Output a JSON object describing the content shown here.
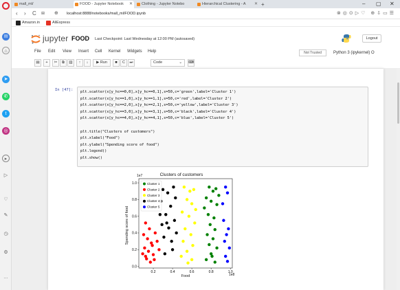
{
  "browser": {
    "tabs": [
      {
        "label": "mall_ml/",
        "color": "#f08a24"
      },
      {
        "label": "FOOD - Jupyter Notebook",
        "color": "#f08a24"
      },
      {
        "label": "Clothing - Jupyter Notebo",
        "color": "#f08a24"
      },
      {
        "label": "Hierarchical Clustering - A",
        "color": "#f08a24"
      }
    ],
    "new_tab": "+",
    "window_controls": [
      "–",
      "▢",
      "✕"
    ],
    "url": "localhost:8888/notebooks/mall_ml/FOOD.ipynb",
    "bookmarks": [
      {
        "label": "Amazon.in",
        "color": "#222222"
      },
      {
        "label": "AliExpress",
        "color": "#e43225"
      }
    ]
  },
  "jupyter": {
    "brand": "jupyter",
    "notebook_name": "FOOD",
    "checkpoint": "Last Checkpoint: Last Wednesday at 12:00 PM  (autosaved)",
    "logout": "Logout",
    "menu": [
      "File",
      "Edit",
      "View",
      "Insert",
      "Cell",
      "Kernel",
      "Widgets",
      "Help"
    ],
    "trusted": "Not Trusted",
    "kernel": "Python 3 (ipykernel)  O",
    "toolbar": {
      "run": "▶ Run",
      "cell_type": "Code"
    }
  },
  "cell": {
    "prompt": "In [47]:",
    "code": [
      "plt.scatter(x[y_hc==0,0],x[y_hc==0,1],s=50,c='green',label='Cluster 1')",
      "plt.scatter(x[y_hc==1,0],x[y_hc==1,1],s=50,c='red',label='Cluster 2')",
      "plt.scatter(x[y_hc==2,0],x[y_hc==2,1],s=50,c='yellow',label='Cluster 3')",
      "plt.scatter(x[y_hc==3,0],x[y_hc==3,1],s=50,c='black',label='Cluster 4')",
      "plt.scatter(x[y_hc==4,0],x[y_hc==4,1],s=50,c='blue',label='Cluster 5')",
      "",
      "plt.title(\"Clusters of customers\")",
      "plt.xlabel(\"Food\")",
      "plt.ylabel(\"Spending score of food\")",
      "plt.legend()",
      "plt.show()"
    ]
  },
  "chart_data": {
    "type": "scatter",
    "title": "Clusters of customers",
    "xlabel": "Food",
    "ylabel": "Spending score of food",
    "x_offset_label": "1e8",
    "y_offset_label": "1e7",
    "xlim": [
      0.05,
      1.02
    ],
    "ylim": [
      -0.02,
      1.05
    ],
    "xticks": [
      "0.2",
      "0.4",
      "0.6",
      "0.8",
      "1.0"
    ],
    "yticks": [
      "0.0",
      "0.2",
      "0.4",
      "0.6",
      "0.8",
      "1.0"
    ],
    "legend_position": "upper-left",
    "series": [
      {
        "name": "Cluster 1",
        "color": "green",
        "points": [
          [
            0.78,
            0.95
          ],
          [
            0.82,
            0.9
          ],
          [
            0.85,
            0.93
          ],
          [
            0.75,
            0.82
          ],
          [
            0.8,
            0.78
          ],
          [
            0.86,
            0.74
          ],
          [
            0.77,
            0.62
          ],
          [
            0.83,
            0.58
          ],
          [
            0.79,
            0.5
          ],
          [
            0.84,
            0.44
          ],
          [
            0.76,
            0.38
          ],
          [
            0.82,
            0.33
          ],
          [
            0.78,
            0.26
          ],
          [
            0.86,
            0.22
          ],
          [
            0.8,
            0.15
          ],
          [
            0.75,
            0.08
          ],
          [
            0.84,
            0.05
          ],
          [
            0.88,
            0.85
          ],
          [
            0.73,
            0.7
          ],
          [
            0.81,
            0.12
          ]
        ]
      },
      {
        "name": "Cluster 2",
        "color": "red",
        "points": [
          [
            0.12,
            0.52
          ],
          [
            0.16,
            0.45
          ],
          [
            0.1,
            0.38
          ],
          [
            0.14,
            0.33
          ],
          [
            0.18,
            0.28
          ],
          [
            0.11,
            0.22
          ],
          [
            0.15,
            0.18
          ],
          [
            0.2,
            0.14
          ],
          [
            0.13,
            0.09
          ],
          [
            0.17,
            0.05
          ],
          [
            0.22,
            0.4
          ],
          [
            0.24,
            0.3
          ],
          [
            0.19,
            0.25
          ],
          [
            0.09,
            0.15
          ],
          [
            0.21,
            0.08
          ],
          [
            0.26,
            0.2
          ],
          [
            0.12,
            0.12
          ]
        ]
      },
      {
        "name": "Cluster 3",
        "color": "yellow",
        "points": [
          [
            0.52,
            0.95
          ],
          [
            0.58,
            0.9
          ],
          [
            0.62,
            0.92
          ],
          [
            0.55,
            0.8
          ],
          [
            0.6,
            0.75
          ],
          [
            0.5,
            0.65
          ],
          [
            0.57,
            0.6
          ],
          [
            0.63,
            0.52
          ],
          [
            0.53,
            0.45
          ],
          [
            0.59,
            0.38
          ],
          [
            0.51,
            0.3
          ],
          [
            0.61,
            0.25
          ],
          [
            0.55,
            0.18
          ],
          [
            0.49,
            0.12
          ],
          [
            0.6,
            0.08
          ],
          [
            0.56,
            0.04
          ],
          [
            0.64,
            0.68
          ]
        ]
      },
      {
        "name": "Cluster 4",
        "color": "black",
        "points": [
          [
            0.3,
            0.92
          ],
          [
            0.35,
            0.88
          ],
          [
            0.41,
            0.95
          ],
          [
            0.28,
            0.78
          ],
          [
            0.38,
            0.72
          ],
          [
            0.33,
            0.62
          ],
          [
            0.42,
            0.55
          ],
          [
            0.29,
            0.5
          ],
          [
            0.36,
            0.46
          ],
          [
            0.44,
            0.4
          ],
          [
            0.31,
            0.35
          ],
          [
            0.39,
            0.3
          ],
          [
            0.27,
            0.62
          ],
          [
            0.43,
            0.82
          ],
          [
            0.34,
            0.52
          ],
          [
            0.4,
            0.2
          ],
          [
            0.32,
            0.15
          ]
        ]
      },
      {
        "name": "Cluster 5",
        "color": "blue",
        "points": [
          [
            0.95,
            0.95
          ],
          [
            0.97,
            0.88
          ],
          [
            0.93,
            0.55
          ],
          [
            0.98,
            0.45
          ],
          [
            0.96,
            0.38
          ],
          [
            0.94,
            0.3
          ],
          [
            0.99,
            0.22
          ],
          [
            0.95,
            0.12
          ],
          [
            0.97,
            0.06
          ],
          [
            0.92,
            0.75
          ]
        ]
      }
    ]
  }
}
